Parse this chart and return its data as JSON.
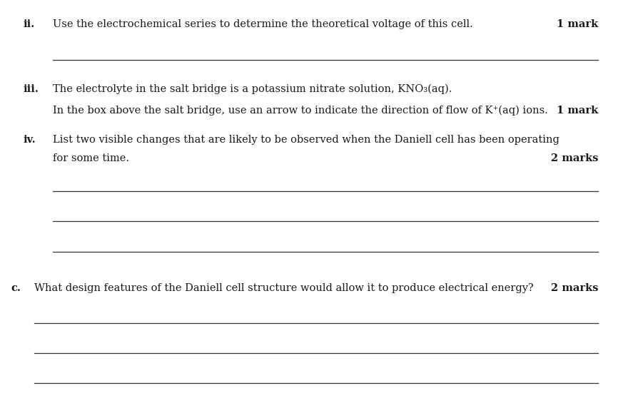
{
  "bg_color": "#ffffff",
  "text_color": "#1a1a1a",
  "line_color": "#333333",
  "font_family": "DejaVu Serif",
  "figsize": [
    8.66,
    5.79
  ],
  "dpi": 100,
  "items": [
    {
      "type": "label",
      "text": "ii.",
      "fx": 0.038,
      "fy": 0.934,
      "ha": "left",
      "bold": true,
      "fontsize": 10.5
    },
    {
      "type": "text",
      "text": "Use the electrochemical series to determine the theoretical voltage of this cell.",
      "fx": 0.085,
      "fy": 0.934,
      "ha": "left",
      "bold": false,
      "fontsize": 10.5
    },
    {
      "type": "mark",
      "text": "1 mark",
      "fx": 0.968,
      "fy": 0.934,
      "ha": "right",
      "bold": true,
      "fontsize": 10.5
    },
    {
      "type": "hline",
      "fy": 0.855,
      "fx1": 0.085,
      "fx2": 0.968
    },
    {
      "type": "label",
      "text": "iii.",
      "fx": 0.038,
      "fy": 0.778,
      "ha": "left",
      "bold": true,
      "fontsize": 10.5
    },
    {
      "type": "text",
      "text": "The electrolyte in the salt bridge is a potassium nitrate solution, KNO₃(aq).",
      "fx": 0.085,
      "fy": 0.778,
      "ha": "left",
      "bold": false,
      "fontsize": 10.5
    },
    {
      "type": "text",
      "text": "In the box above the salt bridge, use an arrow to indicate the direction of flow of K⁺(aq) ions.",
      "fx": 0.085,
      "fy": 0.726,
      "ha": "left",
      "bold": false,
      "fontsize": 10.5
    },
    {
      "type": "mark",
      "text": "1 mark",
      "fx": 0.968,
      "fy": 0.726,
      "ha": "right",
      "bold": true,
      "fontsize": 10.5
    },
    {
      "type": "label",
      "text": "iv.",
      "fx": 0.038,
      "fy": 0.655,
      "ha": "left",
      "bold": true,
      "fontsize": 10.5
    },
    {
      "type": "text",
      "text": "List two visible changes that are likely to be observed when the Daniell cell has been operating",
      "fx": 0.085,
      "fy": 0.655,
      "ha": "left",
      "bold": false,
      "fontsize": 10.5
    },
    {
      "type": "text",
      "text": "for some time.",
      "fx": 0.085,
      "fy": 0.61,
      "ha": "left",
      "bold": false,
      "fontsize": 10.5
    },
    {
      "type": "mark",
      "text": "2 marks",
      "fx": 0.968,
      "fy": 0.61,
      "ha": "right",
      "bold": true,
      "fontsize": 10.5
    },
    {
      "type": "hline",
      "fy": 0.537,
      "fx1": 0.085,
      "fx2": 0.968
    },
    {
      "type": "hline",
      "fy": 0.464,
      "fx1": 0.085,
      "fx2": 0.968
    },
    {
      "type": "hline",
      "fy": 0.391,
      "fx1": 0.085,
      "fx2": 0.968
    },
    {
      "type": "label",
      "text": "c.",
      "fx": 0.018,
      "fy": 0.295,
      "ha": "left",
      "bold": true,
      "fontsize": 10.5
    },
    {
      "type": "text",
      "text": "What design features of the Daniell cell structure would allow it to produce electrical energy?",
      "fx": 0.055,
      "fy": 0.295,
      "ha": "left",
      "bold": false,
      "fontsize": 10.5
    },
    {
      "type": "mark",
      "text": "2 marks",
      "fx": 0.968,
      "fy": 0.295,
      "ha": "right",
      "bold": true,
      "fontsize": 10.5
    },
    {
      "type": "hline",
      "fy": 0.218,
      "fx1": 0.055,
      "fx2": 0.968
    },
    {
      "type": "hline",
      "fy": 0.145,
      "fx1": 0.055,
      "fx2": 0.968
    },
    {
      "type": "hline",
      "fy": 0.072,
      "fx1": 0.055,
      "fx2": 0.968
    }
  ]
}
